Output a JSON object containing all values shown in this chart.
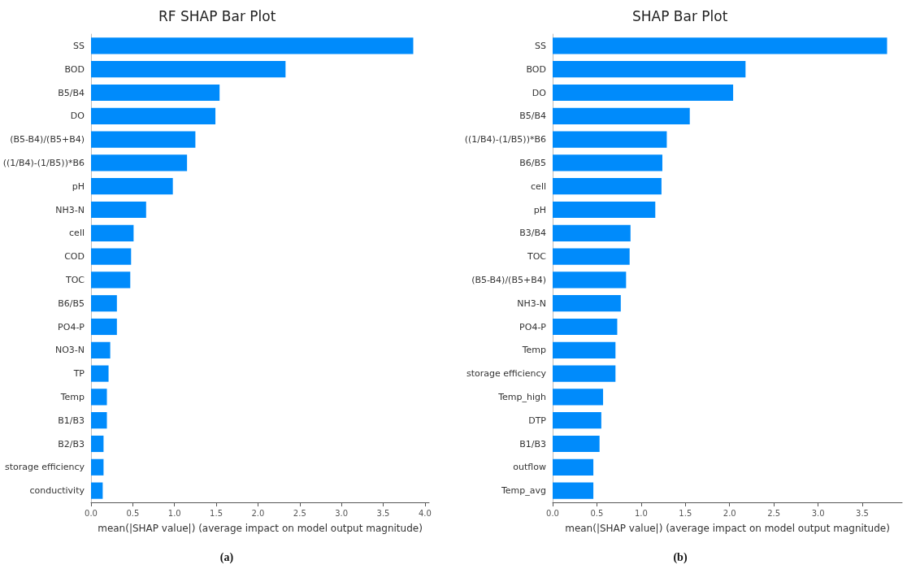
{
  "chart_data": [
    {
      "type": "bar",
      "orientation": "horizontal",
      "title": "RF SHAP Bar Plot",
      "xlabel": "mean(|SHAP value|) (average impact on model output magnitude)",
      "annotations": [
        "(a)"
      ],
      "grid": false,
      "color": "#008bfb",
      "categories": [
        "SS",
        "BOD",
        "B5/B4",
        "DO",
        "(B5-B4)/(B5+B4)",
        "((1/B4)-(1/B5))*B6",
        "pH",
        "NH3-N",
        "cell",
        "COD",
        "TOC",
        "B6/B5",
        "PO4-P",
        "NO3-N",
        "TP",
        "Temp",
        "B1/B3",
        "B2/B3",
        "storage efficiency",
        "conductivity"
      ],
      "values": [
        3.86,
        2.33,
        1.54,
        1.49,
        1.25,
        1.15,
        0.98,
        0.66,
        0.51,
        0.48,
        0.47,
        0.31,
        0.31,
        0.23,
        0.21,
        0.19,
        0.19,
        0.15,
        0.15,
        0.14
      ],
      "xlim": [
        0,
        4.05
      ],
      "xticks": [
        {
          "value": 0,
          "label": "0.0"
        },
        {
          "value": 0.5,
          "label": "0.5"
        },
        {
          "value": 1,
          "label": "1.0"
        },
        {
          "value": 1.5,
          "label": "1.5"
        },
        {
          "value": 2,
          "label": "2.0"
        },
        {
          "value": 2.5,
          "label": "2.5"
        },
        {
          "value": 3,
          "label": "3.0"
        },
        {
          "value": 3.5,
          "label": "3.5"
        },
        {
          "value": 4,
          "label": "4.0"
        }
      ]
    },
    {
      "type": "bar",
      "orientation": "horizontal",
      "title": "SHAP Bar Plot",
      "xlabel": "mean(|SHAP value|) (average impact on model output magnitude)",
      "annotations": [
        "(b)"
      ],
      "grid": false,
      "color": "#008bfb",
      "categories": [
        "SS",
        "BOD",
        "DO",
        "B5/B4",
        "((1/B4)-(1/B5))*B6",
        "B6/B5",
        "cell",
        "pH",
        "B3/B4",
        "TOC",
        "(B5-B4)/(B5+B4)",
        "NH3-N",
        "PO4-P",
        "Temp",
        "storage efficiency",
        "Temp_high",
        "DTP",
        "B1/B3",
        "outflow",
        "Temp_avg"
      ],
      "values": [
        3.78,
        2.18,
        2.04,
        1.55,
        1.29,
        1.24,
        1.23,
        1.16,
        0.88,
        0.87,
        0.83,
        0.77,
        0.73,
        0.71,
        0.71,
        0.57,
        0.55,
        0.53,
        0.46,
        0.46
      ],
      "xlim": [
        0,
        3.95
      ],
      "xticks": [
        {
          "value": 0,
          "label": "0.0"
        },
        {
          "value": 0.5,
          "label": "0.5"
        },
        {
          "value": 1,
          "label": "1.0"
        },
        {
          "value": 1.5,
          "label": "1.5"
        },
        {
          "value": 2,
          "label": "2.0"
        },
        {
          "value": 2.5,
          "label": "2.5"
        },
        {
          "value": 3,
          "label": "3.0"
        },
        {
          "value": 3.5,
          "label": "3.5"
        }
      ]
    }
  ]
}
